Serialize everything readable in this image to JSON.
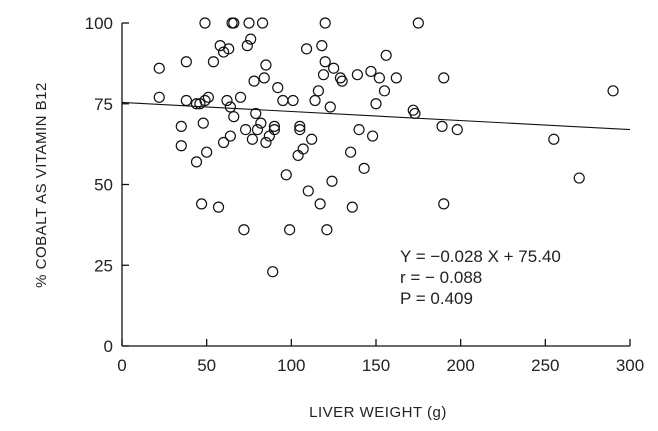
{
  "chart_data": {
    "type": "scatter",
    "xlabel": "LIVER WEIGHT (g)",
    "ylabel": "% COBALT AS VITAMIN B12",
    "xlim": [
      0,
      300
    ],
    "ylim": [
      0,
      100
    ],
    "xticks": [
      "0",
      "50",
      "100",
      "150",
      "200",
      "250",
      "300"
    ],
    "yticks": [
      "0",
      "25",
      "50",
      "75",
      "100"
    ],
    "grid": false,
    "regression": {
      "slope": -0.028,
      "intercept": 75.4
    },
    "annotations": [
      "Y = −0.028 X + 75.40",
      "r = − 0.088",
      "P = 0.409"
    ],
    "points": [
      [
        22,
        86
      ],
      [
        22,
        77
      ],
      [
        35,
        68
      ],
      [
        35,
        62
      ],
      [
        38,
        88
      ],
      [
        38,
        76
      ],
      [
        44,
        57
      ],
      [
        44,
        75
      ],
      [
        46,
        75
      ],
      [
        47,
        44
      ],
      [
        48,
        69
      ],
      [
        49,
        76
      ],
      [
        49,
        100
      ],
      [
        50,
        60
      ],
      [
        51,
        77
      ],
      [
        54,
        88
      ],
      [
        57,
        43
      ],
      [
        58,
        93
      ],
      [
        60,
        63
      ],
      [
        60,
        91
      ],
      [
        62,
        76
      ],
      [
        63,
        92
      ],
      [
        64,
        65
      ],
      [
        64,
        74
      ],
      [
        65,
        100
      ],
      [
        66,
        100
      ],
      [
        66,
        71
      ],
      [
        70,
        77
      ],
      [
        72,
        36
      ],
      [
        73,
        67
      ],
      [
        74,
        93
      ],
      [
        75,
        100
      ],
      [
        76,
        95
      ],
      [
        77,
        64
      ],
      [
        78,
        82
      ],
      [
        79,
        72
      ],
      [
        80,
        67
      ],
      [
        82,
        69
      ],
      [
        83,
        100
      ],
      [
        84,
        83
      ],
      [
        85,
        63
      ],
      [
        85,
        87
      ],
      [
        87,
        65
      ],
      [
        89,
        23
      ],
      [
        90,
        67
      ],
      [
        90,
        68
      ],
      [
        92,
        80
      ],
      [
        95,
        76
      ],
      [
        97,
        53
      ],
      [
        99,
        36
      ],
      [
        101,
        76
      ],
      [
        104,
        59
      ],
      [
        105,
        67
      ],
      [
        105,
        68
      ],
      [
        107,
        61
      ],
      [
        109,
        92
      ],
      [
        110,
        48
      ],
      [
        112,
        64
      ],
      [
        114,
        76
      ],
      [
        116,
        79
      ],
      [
        117,
        44
      ],
      [
        118,
        93
      ],
      [
        119,
        84
      ],
      [
        120,
        100
      ],
      [
        120,
        88
      ],
      [
        121,
        36
      ],
      [
        123,
        74
      ],
      [
        124,
        51
      ],
      [
        125,
        86
      ],
      [
        129,
        83
      ],
      [
        130,
        82
      ],
      [
        135,
        60
      ],
      [
        136,
        43
      ],
      [
        139,
        84
      ],
      [
        140,
        67
      ],
      [
        143,
        55
      ],
      [
        147,
        85
      ],
      [
        148,
        65
      ],
      [
        150,
        75
      ],
      [
        152,
        83
      ],
      [
        155,
        79
      ],
      [
        156,
        90
      ],
      [
        162,
        83
      ],
      [
        172,
        73
      ],
      [
        173,
        72
      ],
      [
        175,
        100
      ],
      [
        189,
        68
      ],
      [
        190,
        83
      ],
      [
        190,
        44
      ],
      [
        198,
        67
      ],
      [
        255,
        64
      ],
      [
        270,
        52
      ],
      [
        290,
        79
      ]
    ]
  }
}
